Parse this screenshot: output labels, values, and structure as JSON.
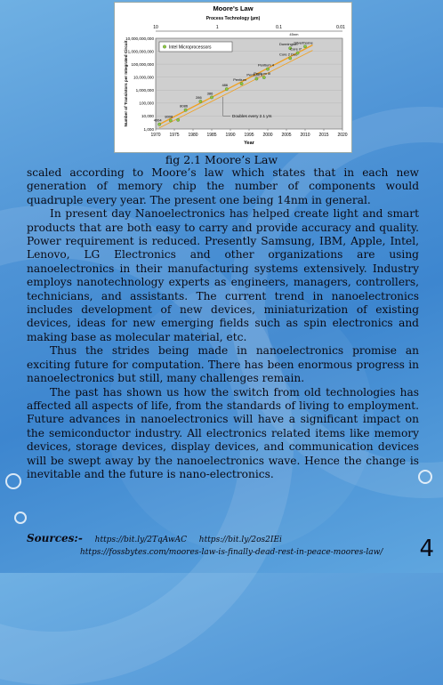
{
  "figure": {
    "caption": "fig 2.1 Moore’s Law",
    "chart_data": {
      "type": "scatter",
      "title": "Moore's Law",
      "top_axis_label": "Process Technology (µm)",
      "top_ticks": [
        "10",
        "1",
        "0.1",
        "0.01"
      ],
      "top_note": "45nm",
      "xlabel": "Year",
      "ylabel": "Number of Transistors per Integrated Circuit",
      "yscale": "log",
      "xlim": [
        1970,
        2020
      ],
      "ylim": [
        1000,
        10000000000
      ],
      "x_ticks": [
        "1970",
        "1975",
        "1980",
        "1985",
        "1990",
        "1995",
        "2000",
        "2005",
        "2010",
        "2015",
        "2020"
      ],
      "y_ticks": [
        "1,000",
        "10,000",
        "100,000",
        "1,000,000",
        "10,000,000",
        "100,000,000",
        "1,000,000,000",
        "10,000,000,000"
      ],
      "legend": "Intel Microprocessors",
      "trend_note": "Doubles every 2.1 yrs",
      "points": [
        {
          "x": 1971,
          "y": 2300,
          "label": "4004"
        },
        {
          "x": 1974,
          "y": 4500,
          "label": "8008"
        },
        {
          "x": 1976,
          "y": 5000,
          "label": ""
        },
        {
          "x": 1978,
          "y": 29000,
          "label": "8086"
        },
        {
          "x": 1982,
          "y": 134000,
          "label": "286"
        },
        {
          "x": 1985,
          "y": 275000,
          "label": "386"
        },
        {
          "x": 1989,
          "y": 1200000,
          "label": "486"
        },
        {
          "x": 1993,
          "y": 3100000,
          "label": "Pentium"
        },
        {
          "x": 1997,
          "y": 7500000,
          "label": "Pentium II"
        },
        {
          "x": 1999,
          "y": 9500000,
          "label": "Pentium III"
        },
        {
          "x": 2000,
          "y": 42000000,
          "label": "Pentium 4"
        },
        {
          "x": 2006,
          "y": 290000000,
          "label": "Core 2 Duo"
        },
        {
          "x": 2006,
          "y": 1700000000,
          "label": "Dunnington"
        },
        {
          "x": 2008,
          "y": 730000000,
          "label": "Core i7"
        },
        {
          "x": 2010,
          "y": 2300000000,
          "label": "Silverthorne"
        }
      ],
      "trend": [
        {
          "x": 1971,
          "y": 2300
        },
        {
          "x": 2012,
          "y": 3000000000
        }
      ]
    }
  },
  "paragraphs": [
    {
      "text": "scaled according to Moore’s law which states that in each new generation of memory chip the number of components would quadruple every year. The present one being 14nm in general.",
      "indent": false
    },
    {
      "text": "In present day Nanoelectronics has helped create light and smart products that are both easy to carry and provide accuracy and quality. Power requirement is reduced. Presently Samsung, IBM, Apple, Intel, Lenovo, LG Electronics and other organizations are using nanoelectronics in their manufacturing systems extensively. Industry employs nanotechnology experts as engineers, managers, controllers, technicians, and assistants. The current trend in nanoelectronics includes development of new devices, miniaturization of existing devices, ideas for new emerging fields such as spin electronics and making base as molecular material, etc.",
      "indent": true
    },
    {
      "text": "Thus the strides being made in nanoelectronics promise an exciting future for computation. There has been enormous progress in nanoelectronics but still, many challenges remain.",
      "indent": true
    },
    {
      "text": "The past has shown us how the switch from old technologies has affected all aspects of life, from the standards of living to employment. Future advances in nanoelectronics will have a significant impact on the semiconductor industry. All electronics related items like memory devices, storage devices, display devices, and communication devices will be swept away by the nanoelectronics wave. Hence the change is inevitable and the future is nano-electronics.",
      "indent": true
    }
  ],
  "sources": {
    "label": "Sources:-",
    "link1": "https://bit.ly/2TqAwAC",
    "link2": "https://bit.ly/2os2IEi",
    "link3": "https://fossbytes.com/moores-law-is-finally-dead-rest-in-peace-moores-law/"
  },
  "page_number": "4",
  "colors": {
    "point_fill": "#8fc73e",
    "trend": "#f0a020",
    "plot_bg": "#cfcfcf"
  }
}
